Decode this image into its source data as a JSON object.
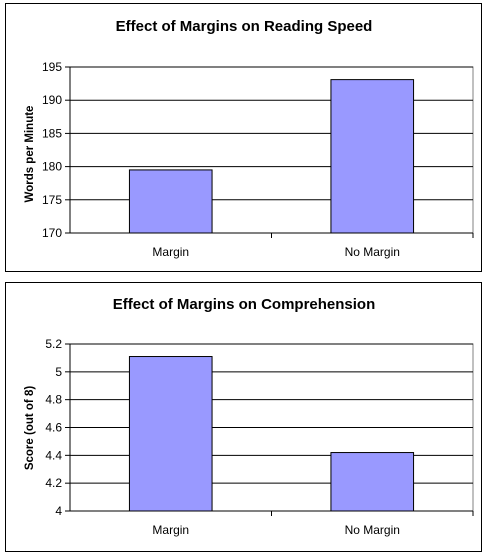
{
  "chart_data": [
    {
      "type": "bar",
      "title": "Effect of Margins on Reading Speed",
      "xlabel": "",
      "ylabel": "Words per Minute",
      "categories": [
        "Margin",
        "No Margin"
      ],
      "values": [
        179.5,
        193.1
      ],
      "ylim": [
        170,
        195
      ],
      "yticks": [
        "170",
        "175",
        "180",
        "185",
        "190",
        "195"
      ],
      "ytick_values": [
        170,
        175,
        180,
        185,
        190,
        195
      ],
      "grid": true,
      "bar_color": "#9999ff"
    },
    {
      "type": "bar",
      "title": "Effect of Margins on Comprehension",
      "xlabel": "",
      "ylabel": "Score (out of 8)",
      "categories": [
        "Margin",
        "No Margin"
      ],
      "values": [
        5.11,
        4.42
      ],
      "ylim": [
        4,
        5.2
      ],
      "yticks": [
        "4",
        "4.2",
        "4.4",
        "4.6",
        "4.8",
        "5",
        "5.2"
      ],
      "ytick_values": [
        4,
        4.2,
        4.4,
        4.6,
        4.8,
        5,
        5.2
      ],
      "grid": true,
      "bar_color": "#9999ff"
    }
  ]
}
